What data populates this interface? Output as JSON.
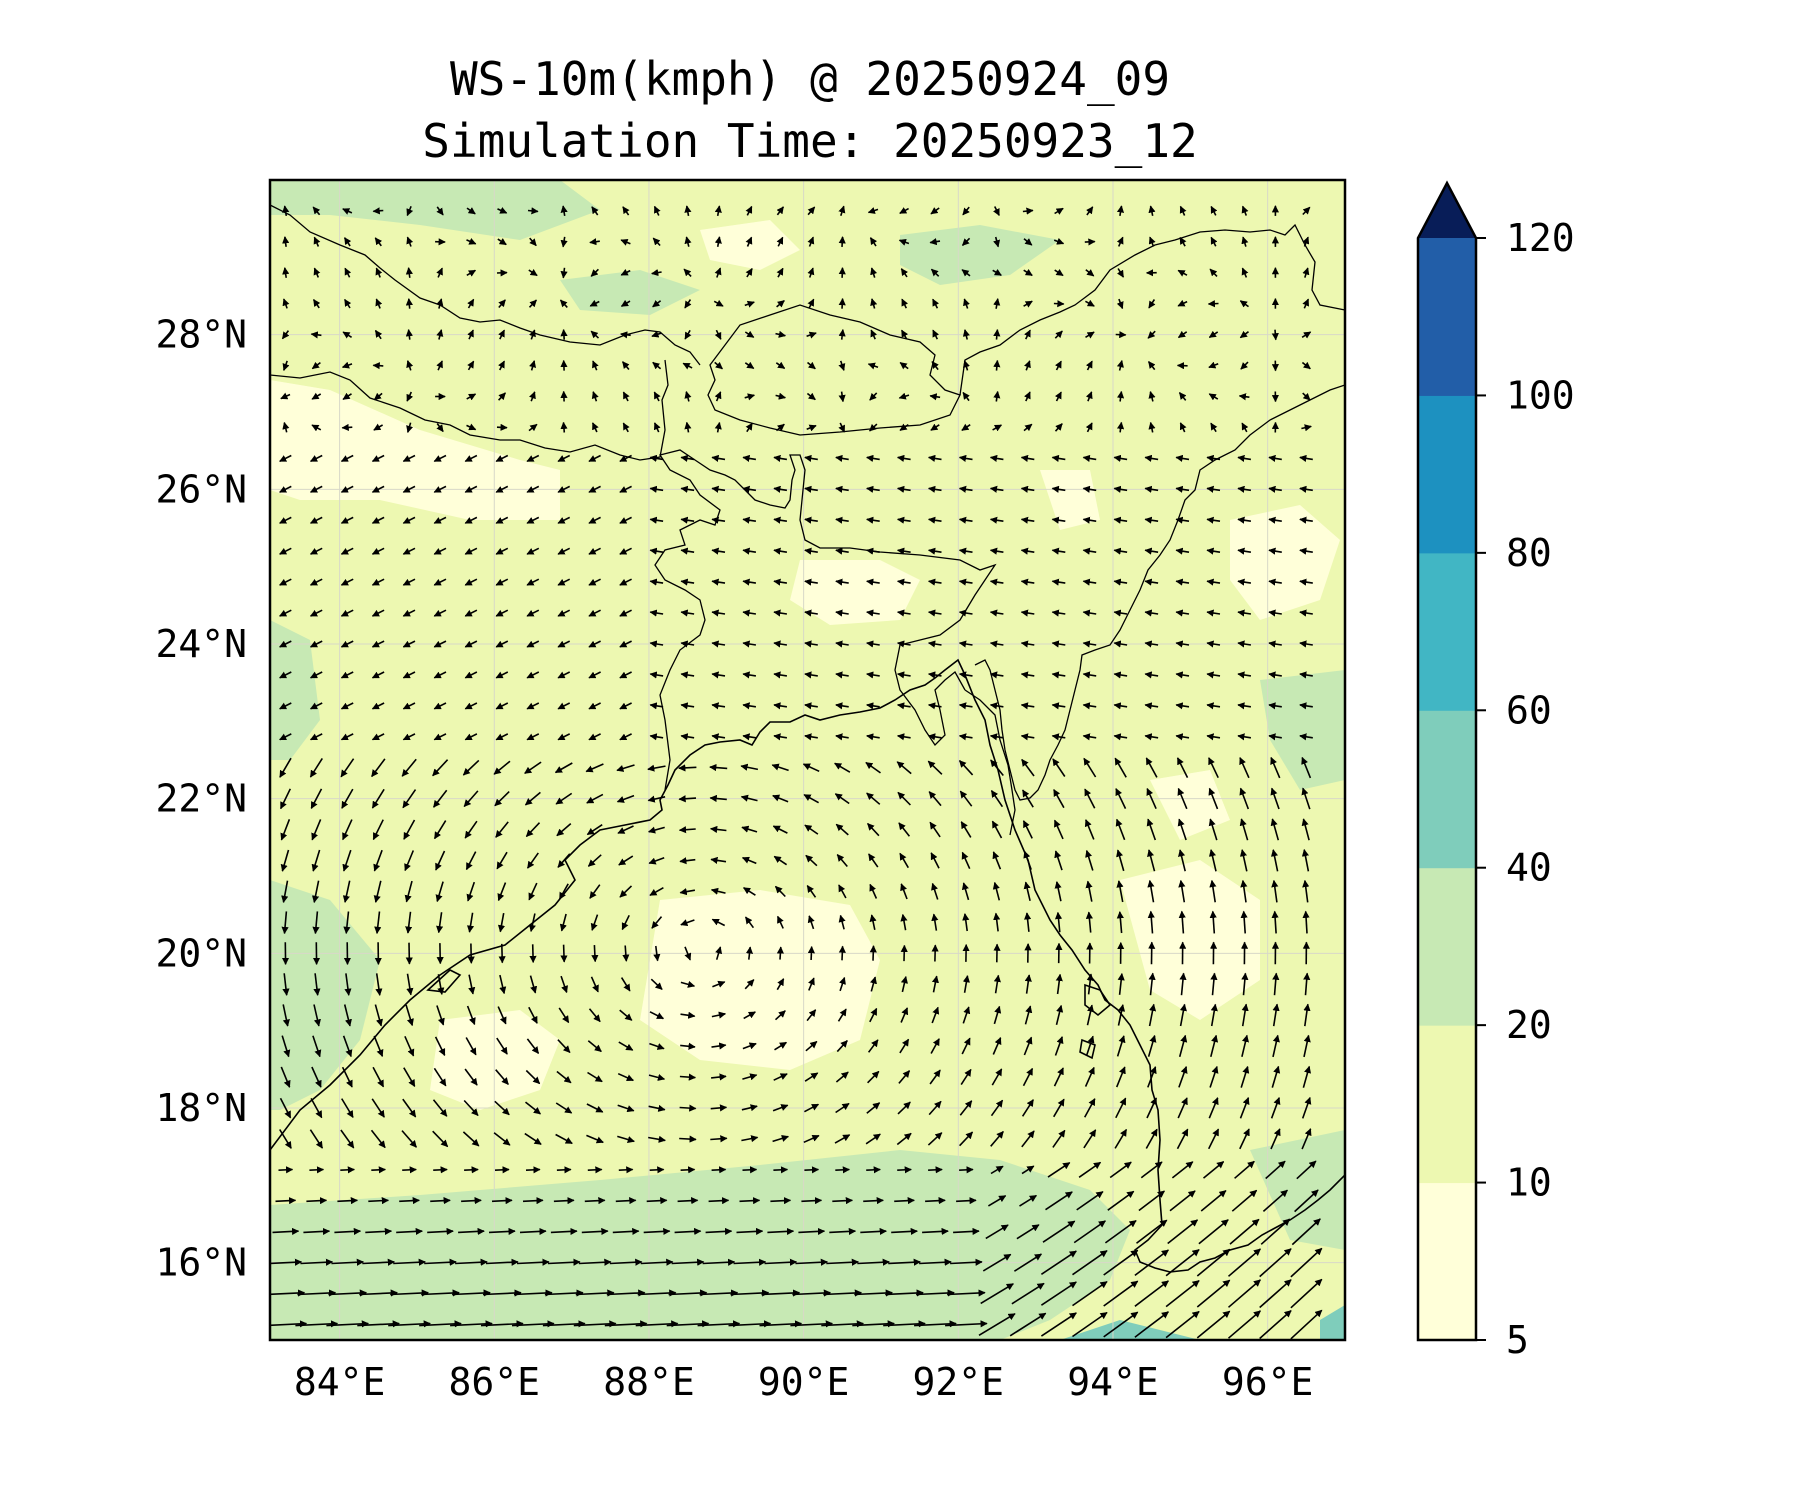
{
  "title": "WS-10m(kmph) @ 20250924_09",
  "subtitle": "Simulation Time: 20250923_12",
  "map": {
    "lon_range": [
      83.1,
      97.0
    ],
    "lat_range": [
      15.0,
      30.0
    ],
    "lon_ticks": [
      "84°E",
      "86°E",
      "88°E",
      "90°E",
      "92°E",
      "94°E",
      "96°E"
    ],
    "lat_ticks": [
      "16°N",
      "18°N",
      "20°N",
      "22°N",
      "24°N",
      "26°N",
      "28°N"
    ],
    "gridlines": true
  },
  "colorbar": {
    "levels": [
      5,
      10,
      20,
      40,
      60,
      80,
      100,
      120
    ],
    "tick_labels": [
      "5",
      "10",
      "20",
      "40",
      "60",
      "80",
      "100",
      "120"
    ],
    "colors": [
      "#ffffd9",
      "#edf8b1",
      "#c7e9b4",
      "#7fcdbb",
      "#41b6c4",
      "#1d91c0",
      "#225ea8",
      "#253494"
    ],
    "extend_color": "#081d58",
    "extend": "max"
  },
  "palette": {
    "calm": "#ffffd9",
    "light": "#edf8b1",
    "moderate": "#c7e9b4",
    "strong": "#7fcdbb"
  },
  "icons": {
    "wind_vector": "arrow-icon",
    "colorbar_extend": "triangle-up-icon"
  }
}
